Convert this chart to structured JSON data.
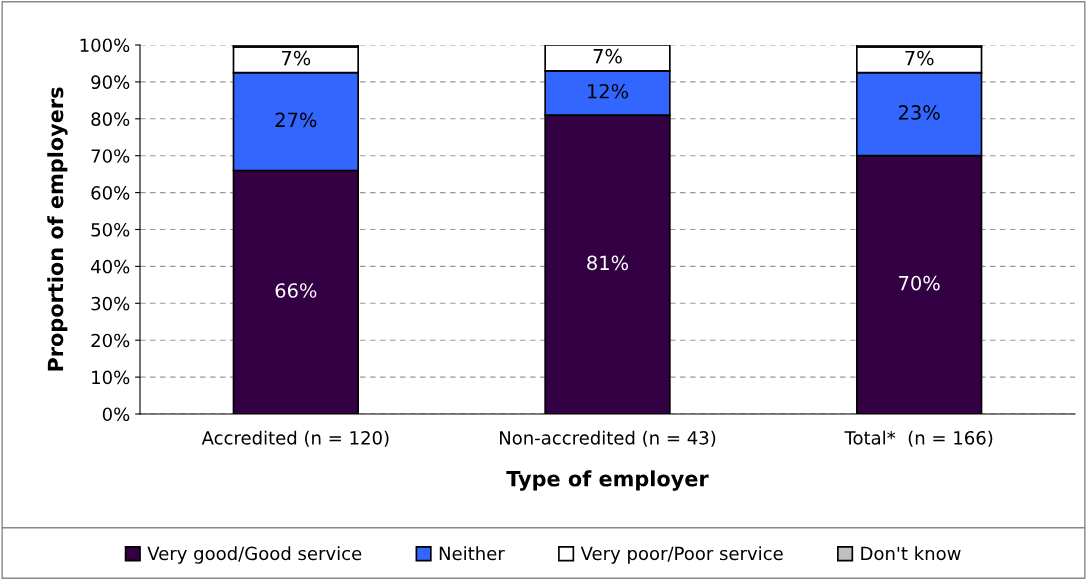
{
  "chart_data": {
    "type": "bar",
    "stacked": true,
    "xlabel": "Type of employer",
    "ylabel": "Proportion of employers",
    "categories": [
      "Accredited (n = 120)",
      "Non-accredited (n = 43)",
      "Total*  (n = 166)"
    ],
    "series": [
      {
        "name": "Very good/Good service",
        "color": "#330044",
        "values": [
          66,
          81,
          70
        ],
        "value_labels": [
          "66%",
          "81%",
          "70%"
        ]
      },
      {
        "name": "Neither",
        "color": "#3366ff",
        "values": [
          26.5,
          12,
          22.5
        ],
        "value_labels": [
          "27%",
          "12%",
          "23%"
        ]
      },
      {
        "name": "Very poor/Poor service",
        "color": "#ffffff",
        "values": [
          7,
          7,
          7
        ],
        "value_labels": [
          "7%",
          "7%",
          "7%"
        ]
      },
      {
        "name": "Don't know",
        "color": "#c0c0c0",
        "values": [
          0.5,
          null,
          0.5
        ]
      }
    ],
    "ylim": [
      0,
      100
    ],
    "yticks": [
      {
        "value": 0,
        "label": "0%"
      },
      {
        "value": 10,
        "label": "10%"
      },
      {
        "value": 20,
        "label": "20%"
      },
      {
        "value": 30,
        "label": "30%"
      },
      {
        "value": 40,
        "label": "40%"
      },
      {
        "value": 50,
        "label": "50%"
      },
      {
        "value": 60,
        "label": "60%"
      },
      {
        "value": 70,
        "label": "70%"
      },
      {
        "value": 80,
        "label": "80%"
      },
      {
        "value": 90,
        "label": "90%"
      },
      {
        "value": 100,
        "label": "100%"
      }
    ],
    "grid": "y",
    "legend": "bottom"
  }
}
